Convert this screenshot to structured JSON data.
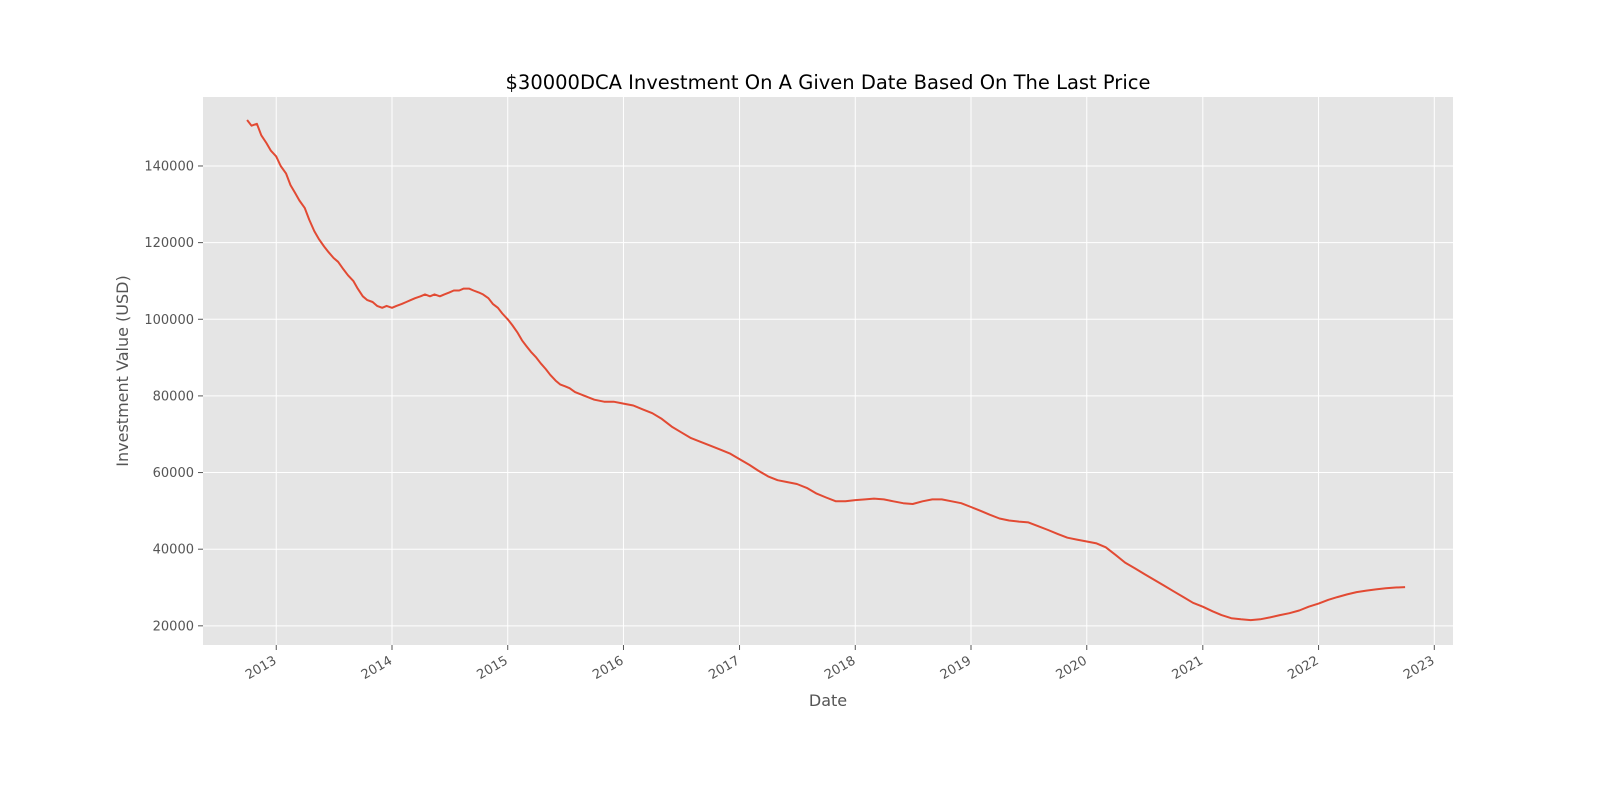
{
  "chart_data": {
    "type": "line",
    "title": "$30000DCA Investment On A Given Date Based On The Last Price",
    "xlabel": "Date",
    "ylabel": "Investment Value (USD)",
    "x_tick_labels": [
      "2013",
      "2014",
      "2015",
      "2016",
      "2017",
      "2018",
      "2019",
      "2020",
      "2021",
      "2022",
      "2023"
    ],
    "y_tick_labels": [
      "20000",
      "40000",
      "60000",
      "80000",
      "100000",
      "120000",
      "140000"
    ],
    "xlim": [
      "2012-05-15",
      "2023-03-01"
    ],
    "ylim": [
      15000,
      158000
    ],
    "grid": true,
    "colors": {
      "line": "#e24a33",
      "plot_bg": "#e5e5e5",
      "grid": "#ffffff"
    },
    "series": [
      {
        "x": [
          "2012-10-01",
          "2012-10-15",
          "2012-11-01",
          "2012-11-15",
          "2012-12-01",
          "2012-12-15",
          "2013-01-01",
          "2013-01-15",
          "2013-02-01",
          "2013-02-15",
          "2013-03-01",
          "2013-03-15",
          "2013-04-01",
          "2013-04-15",
          "2013-05-01",
          "2013-05-15",
          "2013-06-01",
          "2013-06-15",
          "2013-07-01",
          "2013-07-15",
          "2013-08-01",
          "2013-08-15",
          "2013-09-01",
          "2013-09-15",
          "2013-10-01",
          "2013-10-15",
          "2013-11-01",
          "2013-11-15",
          "2013-12-01",
          "2013-12-15",
          "2014-01-01",
          "2014-01-15",
          "2014-02-01",
          "2014-02-15",
          "2014-03-01",
          "2014-03-15",
          "2014-04-01",
          "2014-04-15",
          "2014-05-01",
          "2014-05-15",
          "2014-06-01",
          "2014-06-15",
          "2014-07-01",
          "2014-07-15",
          "2014-08-01",
          "2014-08-15",
          "2014-09-01",
          "2014-09-15",
          "2014-10-01",
          "2014-10-15",
          "2014-11-01",
          "2014-11-15",
          "2014-12-01",
          "2014-12-15",
          "2015-01-01",
          "2015-01-15",
          "2015-02-01",
          "2015-02-15",
          "2015-03-01",
          "2015-03-15",
          "2015-04-01",
          "2015-04-15",
          "2015-05-01",
          "2015-05-15",
          "2015-06-01",
          "2015-06-15",
          "2015-07-01",
          "2015-07-15",
          "2015-08-01",
          "2015-09-01",
          "2015-10-01",
          "2015-11-01",
          "2015-12-01",
          "2016-01-01",
          "2016-02-01",
          "2016-03-01",
          "2016-04-01",
          "2016-05-01",
          "2016-06-01",
          "2016-07-01",
          "2016-08-01",
          "2016-09-01",
          "2016-10-01",
          "2016-11-01",
          "2016-12-01",
          "2017-01-01",
          "2017-02-01",
          "2017-03-01",
          "2017-04-01",
          "2017-05-01",
          "2017-06-01",
          "2017-07-01",
          "2017-08-01",
          "2017-09-01",
          "2017-10-01",
          "2017-11-01",
          "2017-12-01",
          "2018-01-01",
          "2018-02-01",
          "2018-03-01",
          "2018-04-01",
          "2018-05-01",
          "2018-06-01",
          "2018-07-01",
          "2018-08-01",
          "2018-09-01",
          "2018-10-01",
          "2018-11-01",
          "2018-12-01",
          "2019-01-01",
          "2019-02-01",
          "2019-03-01",
          "2019-04-01",
          "2019-05-01",
          "2019-06-01",
          "2019-07-01",
          "2019-08-01",
          "2019-09-01",
          "2019-10-01",
          "2019-11-01",
          "2019-12-01",
          "2020-01-01",
          "2020-02-01",
          "2020-03-01",
          "2020-04-01",
          "2020-05-01",
          "2020-06-01",
          "2020-07-01",
          "2020-08-01",
          "2020-09-01",
          "2020-10-01",
          "2020-11-01",
          "2020-12-01",
          "2021-01-01",
          "2021-02-01",
          "2021-03-01",
          "2021-04-01",
          "2021-05-01",
          "2021-06-01",
          "2021-07-01",
          "2021-08-01",
          "2021-09-01",
          "2021-10-01",
          "2021-11-01",
          "2021-12-01",
          "2022-01-01",
          "2022-02-01",
          "2022-03-01",
          "2022-04-01",
          "2022-05-01",
          "2022-06-01",
          "2022-07-01",
          "2022-08-01",
          "2022-09-01",
          "2022-10-01"
        ],
        "y": [
          152000,
          150500,
          151000,
          148000,
          146000,
          144000,
          142500,
          140000,
          138000,
          135000,
          133000,
          131000,
          129000,
          126000,
          123000,
          121000,
          119000,
          117500,
          116000,
          115000,
          113000,
          111500,
          110000,
          108000,
          106000,
          105000,
          104500,
          103500,
          103000,
          103500,
          103000,
          103500,
          104000,
          104500,
          105000,
          105500,
          106000,
          106500,
          106000,
          106500,
          106000,
          106500,
          107000,
          107500,
          107500,
          108000,
          108000,
          107500,
          107000,
          106500,
          105500,
          104000,
          103000,
          101500,
          100000,
          98500,
          96500,
          94500,
          93000,
          91500,
          90000,
          88500,
          87000,
          85500,
          84000,
          83000,
          82500,
          82000,
          81000,
          80000,
          79000,
          78500,
          78500,
          78000,
          77500,
          76500,
          75500,
          74000,
          72000,
          70500,
          69000,
          68000,
          67000,
          66000,
          65000,
          63500,
          62000,
          60500,
          59000,
          58000,
          57500,
          57000,
          56000,
          54500,
          53500,
          52500,
          52500,
          52800,
          53000,
          53200,
          53000,
          52500,
          52000,
          51800,
          52500,
          53000,
          53000,
          52500,
          52000,
          51000,
          50000,
          49000,
          48000,
          47500,
          47200,
          47000,
          46000,
          45000,
          44000,
          43000,
          42500,
          42000,
          41500,
          40500,
          38500,
          36500,
          35000,
          33500,
          32000,
          30500,
          29000,
          27500,
          26000,
          25000,
          23800,
          22800,
          22000,
          21700,
          21500,
          21700,
          22200,
          22800,
          23300,
          24000,
          25000,
          25800,
          26800,
          27500,
          28200,
          28800,
          29200,
          29500,
          29800,
          30000,
          30100
        ]
      }
    ]
  }
}
